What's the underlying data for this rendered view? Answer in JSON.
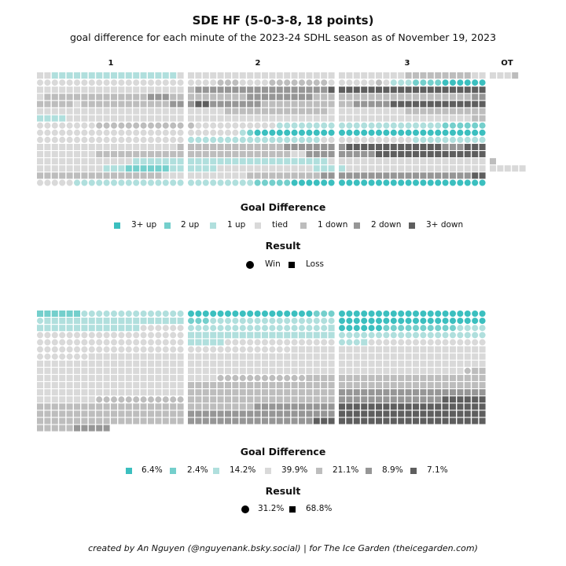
{
  "title": "SDE HF (5-0-3-8, 18 points)",
  "subtitle": "goal difference for each minute of the 2023-24 SDHL season as of November 19, 2023",
  "footer": "created by An Nguyen (@nguyenank.bsky.social) | for The Ice Garden (theicegarden.com)",
  "chart_data": [
    {
      "type": "heatmap",
      "description_key": "A=3+ up, B=2 up, C=1 up, T=tied, x=1 down, y=2 down, z=3+ down; one row per game, one cell per minute",
      "period_labels": [
        "1",
        "2",
        "3",
        "OT"
      ],
      "games": [
        {
          "result": "Loss",
          "p1": "TTCCCCCCCCCCCCCCCCCT",
          "p2": "TTTTTTTTTTTTTTTTTTTT",
          "p3": "TTTTTTTTTxxxxxxxxxTT",
          "ot": "TTTx"
        },
        {
          "result": "Win",
          "p1": "TTTTTTTTTTTTTTTTTTTT",
          "p2": "TTTTxxxTTTTxxxxxxxxT",
          "p3": "TTTTTxTCCCBBBBAAAAAA",
          "ot": ""
        },
        {
          "result": "Loss",
          "p1": "TTTTTTTTTTTTTTTTTTTT",
          "p2": "xyyyyyyyyyyyyyyyyyyz",
          "p3": "zzzzzzzzzzzzzzzzzzzz",
          "ot": ""
        },
        {
          "result": "Loss",
          "p1": "Txxxxxxxxxxxxxxyyyxx",
          "p2": "xxxxxxxxyyyyyyyyyxxx",
          "p3": "xxxxxxxxxxxxxxxxxxyy",
          "ot": ""
        },
        {
          "result": "Loss",
          "p1": "xxxxxTxxxxxxxxxxxxyy",
          "p2": "yzzyyyyyyyxxxxxxxxxx",
          "p3": "xxyyyyyzzzzzzzzzzzzz",
          "ot": ""
        },
        {
          "result": "Loss",
          "p1": "TTTTTTTTTTTTTTTTTTTT",
          "p2": "TTTTTxxxxxxxxxxxxxxT",
          "p3": "TTTTTTTTTxxxxxxxxxxx",
          "ot": ""
        },
        {
          "result": "Loss",
          "p1": "CCCCTTTTTTTTTTTTTTTT",
          "p2": "TTTTTTTTTTTTTTTTTTTT",
          "p3": "TTTTTTTTTTTTTTTTTTxx",
          "ot": ""
        },
        {
          "result": "Win",
          "p1": "TTTTTTTTxxxxxxxxxxxx",
          "p2": "xTTTTTTTTTTTCCCCCCCC",
          "p3": "CCCCCCCCCCCCCCBBBBBB",
          "ot": ""
        },
        {
          "result": "Win",
          "p1": "TTTTTTTTTTTTTTTTTTTT",
          "p2": "TTTTTTTCBAAAAAAAAAAA",
          "p3": "AAAAAAAAAAAAAAAAAAAA",
          "ot": ""
        },
        {
          "result": "Win",
          "p1": "TTTTTTTTTTTTTTTTTTTT",
          "p2": "CCCCCCCCCCCCCCCCCCTT",
          "p3": "TTTTTTTTTTCCCCCCCCCC",
          "ot": ""
        },
        {
          "result": "Loss",
          "p1": "TTTTTTTTTTTTTTTTTTTx",
          "p2": "xxxxxxxxxxxxxyyyyyyy",
          "p3": "yzzzzzzzzzzzzzyyyzzz",
          "ot": ""
        },
        {
          "result": "Loss",
          "p1": "TTTTTTTTxxxxxxxxxxxx",
          "p2": "xxxxxxxxxxxxxxTTyyyy",
          "p3": "yyyyyzzzzzzzzzzzzzzz",
          "ot": ""
        },
        {
          "result": "Loss",
          "p1": "TTTTTTTTTTTTTCCCCCCC",
          "p2": "CCCCCCCCCCCCCCCCCCCT",
          "p3": "TTTTTTTTTTTTTTTTTTTT",
          "ot": "x"
        },
        {
          "result": "Loss",
          "p1": "TTTTTTTTTCCCBBBBBBCC",
          "p2": "CCCCTTTTTTTTTTTTTCCC",
          "p3": "CTTTTTTTTTTTTTTTTTTT",
          "ot": "TTTTT"
        },
        {
          "result": "Loss",
          "p1": "xxxxxxxxxxxxxxxxxTTT",
          "p2": "TTTTTTTTxxxxxxxxxxyy",
          "p3": "yyyyyyyyyyyyyyyyyyzz",
          "ot": ""
        },
        {
          "result": "Win",
          "p1": "TTTTTCCCCCCCCCCCCCCC",
          "p2": "CCCCCCCCCBBBBBAAAAAA",
          "p3": "AAAAAAAAAAAAAAAAAAAA",
          "ot": ""
        }
      ],
      "legend_title": "Goal Difference",
      "levels": [
        {
          "key": "A",
          "label": "3+ up",
          "color": "#3bbfbf"
        },
        {
          "key": "B",
          "label": "2 up",
          "color": "#74cfcc"
        },
        {
          "key": "C",
          "label": "1 up",
          "color": "#b0dfdd"
        },
        {
          "key": "T",
          "label": "tied",
          "color": "#d9d9d9"
        },
        {
          "key": "x",
          "label": "1 down",
          "color": "#bdbdbd"
        },
        {
          "key": "y",
          "label": "2 down",
          "color": "#969696"
        },
        {
          "key": "z",
          "label": "3+ down",
          "color": "#5e5e5e"
        }
      ],
      "result_title": "Result",
      "results": [
        {
          "label": "Win",
          "shape": "circle"
        },
        {
          "label": "Loss",
          "shape": "square"
        }
      ]
    },
    {
      "type": "heatmap",
      "sorted": true,
      "legend_title": "Goal Difference",
      "level_percents": [
        "6.4%",
        "2.4%",
        "14.2%",
        "39.9%",
        "21.1%",
        "8.9%",
        "7.1%"
      ],
      "result_title": "Result",
      "result_percents": [
        "31.2%",
        "68.8%"
      ]
    }
  ]
}
